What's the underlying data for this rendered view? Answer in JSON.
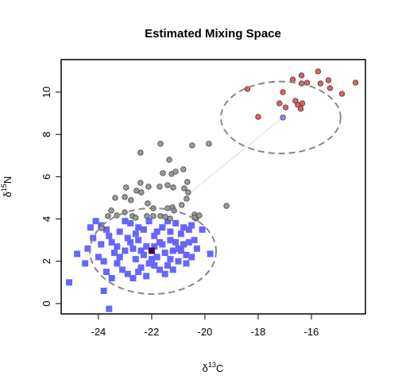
{
  "chart_data": {
    "type": "scatter",
    "title": "Estimated Mixing Space",
    "xlabel": [
      "δ",
      "13",
      "C"
    ],
    "ylabel": [
      "δ",
      "15",
      "N"
    ],
    "xlim": [
      -25.4,
      -13.97
    ],
    "ylim": [
      -0.49,
      11.54
    ],
    "xticks": [
      -24,
      -22,
      -20,
      -18,
      -16
    ],
    "yticks": [
      0,
      2,
      4,
      6,
      8,
      10
    ],
    "ellipses": [
      {
        "cx": -21.95,
        "cy": 2.48,
        "rx": 2.37,
        "ry": 2.03,
        "color": "#888888"
      },
      {
        "cx": -17.15,
        "cy": 8.8,
        "rx": 2.25,
        "ry": 1.7,
        "color": "#888888"
      }
    ],
    "mixing_line": {
      "x": [
        -20.6,
        -17.07
      ],
      "y": [
        5.2,
        8.8
      ],
      "color": "#dddddd"
    },
    "series": [
      {
        "color": "#6666ff",
        "marker": "square",
        "x": [
          -25.1,
          -24.8,
          -23.6,
          -23.8,
          -24.3,
          -20.1,
          -19.8,
          -22.7,
          -24.4,
          -24.5,
          -24.2,
          -24.0,
          -23.9,
          -23.7,
          -23.5,
          -23.3,
          -23.2,
          -23.0,
          -22.9,
          -22.8,
          -22.6,
          -22.5,
          -22.4,
          -22.3,
          -22.2,
          -22.1,
          -21.9,
          -21.8,
          -21.7,
          -21.6,
          -21.5,
          -21.4,
          -21.3,
          -21.2,
          -21.1,
          -21.0,
          -20.9,
          -20.8,
          -20.6,
          -20.5,
          -20.4,
          -20.3,
          -24.1,
          -23.9,
          -23.6,
          -23.4,
          -23.1,
          -22.9,
          -22.7,
          -22.5,
          -22.3,
          -22.1,
          -21.9,
          -21.7,
          -21.5,
          -21.3,
          -21.1,
          -20.9,
          -20.7,
          -20.5,
          -23.7,
          -23.3,
          -22.8,
          -22.4,
          -22.0,
          -21.6,
          -21.2,
          -20.8,
          -23.5,
          -23.0,
          -22.6,
          -22.2,
          -21.8,
          -21.4,
          -21.0,
          -20.6,
          -23.8,
          -23.2,
          -22.5,
          -21.9,
          -21.3,
          -20.7
        ],
        "y": [
          1.0,
          2.35,
          -0.25,
          0.6,
          3.6,
          3.5,
          2.35,
          1.2,
          2.6,
          1.9,
          3.1,
          2.2,
          3.7,
          1.5,
          2.9,
          1.9,
          3.4,
          2.5,
          1.4,
          3.8,
          2.1,
          3.0,
          1.7,
          3.5,
          2.7,
          1.9,
          3.2,
          2.2,
          1.6,
          3.6,
          2.4,
          1.8,
          3.0,
          2.5,
          3.8,
          2.0,
          3.3,
          2.8,
          3.5,
          2.2,
          3.0,
          2.6,
          3.9,
          2.8,
          3.2,
          2.4,
          1.6,
          3.1,
          2.6,
          1.5,
          2.3,
          3.9,
          2.7,
          2.9,
          1.4,
          2.1,
          2.9,
          2.5,
          1.9,
          3.7,
          3.5,
          2.7,
          2.9,
          2.5,
          2.1,
          2.8,
          1.6,
          3.6,
          1.2,
          3.9,
          3.3,
          1.3,
          3.4,
          3.9,
          2.6,
          2.9,
          2.0,
          2.2,
          3.6,
          1.8,
          3.4,
          2.3
        ]
      },
      {
        "color": "#999999",
        "marker": "circle",
        "x": [
          -22.42,
          -21.67,
          -20.48,
          -19.85,
          -21.34,
          -21.58,
          -21.25,
          -21.1,
          -20.81,
          -20.66,
          -20.63,
          -22.42,
          -22.57,
          -22.39,
          -22.12,
          -22.96,
          -21.7,
          -21.4,
          -21.19,
          -20.78,
          -20.69,
          -23.37,
          -23.01,
          -22.78,
          -22.15,
          -21.94,
          -21.4,
          -21.22,
          -20.87,
          -20.39,
          -20.33,
          -20.21,
          -19.19,
          -21.31,
          -21.16,
          -23.52,
          -23.31,
          -23.01,
          -22.72,
          -22.6,
          -22.18,
          -21.94,
          -21.67,
          -21.49,
          -20.39,
          -23.64,
          -23.88
        ],
        "y": [
          7.14,
          7.56,
          7.48,
          7.56,
          6.8,
          6.17,
          6.13,
          6.24,
          6.35,
          5.75,
          5.26,
          5.71,
          5.34,
          5.26,
          5.53,
          5.49,
          5.53,
          5.6,
          5.49,
          5.45,
          4.96,
          5.0,
          5.04,
          4.89,
          4.74,
          4.51,
          4.51,
          4.55,
          4.66,
          4.21,
          4.02,
          4.17,
          4.62,
          4.02,
          4.4,
          4.4,
          4.17,
          4.32,
          4.14,
          4.06,
          4.14,
          4.14,
          4.14,
          4.1,
          4.06,
          4.14,
          3.57
        ]
      },
      {
        "color": "#e06060",
        "marker": "circle",
        "x": [
          -18.4,
          -18.0,
          -17.07,
          -17.2,
          -16.97,
          -16.37,
          -16.37,
          -16.16,
          -15.75,
          -15.66,
          -15.36,
          -15.3,
          -14.85,
          -14.34,
          -16.6,
          -16.51,
          -16.4,
          -16.34,
          -16.7
        ],
        "y": [
          10.15,
          8.83,
          10.0,
          9.47,
          9.28,
          10.79,
          10.41,
          10.45,
          10.98,
          10.41,
          10.56,
          10.19,
          9.92,
          10.45,
          9.59,
          9.4,
          9.21,
          9.47,
          10.6
        ]
      },
      {
        "color": "#330066",
        "marker": "square",
        "x": [
          -22.0
        ],
        "y": [
          2.5
        ]
      },
      {
        "color": "#8888ff",
        "marker": "circle",
        "x": [
          -17.07
        ],
        "y": [
          8.8
        ]
      }
    ]
  }
}
